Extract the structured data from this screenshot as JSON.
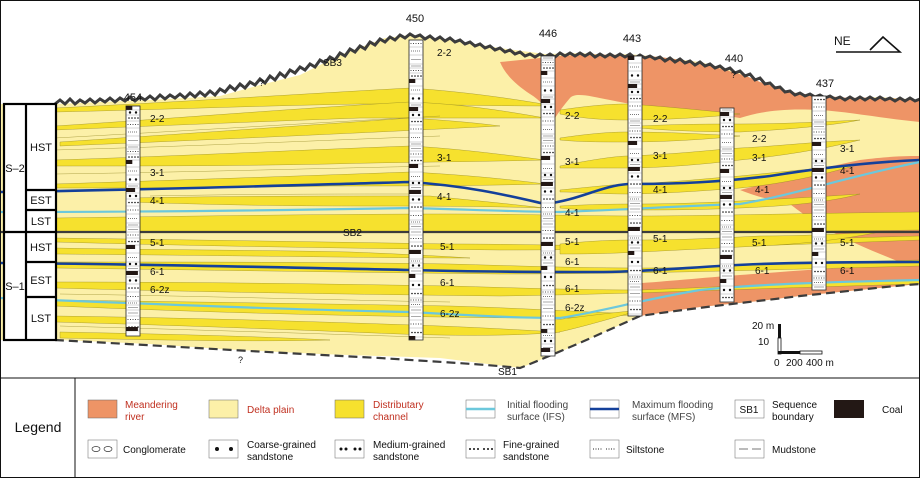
{
  "wells": [
    {
      "id": "454"
    },
    {
      "id": "450"
    },
    {
      "id": "446"
    },
    {
      "id": "443"
    },
    {
      "id": "440"
    },
    {
      "id": "437"
    }
  ],
  "sequences": {
    "upper": {
      "label": "S–2",
      "tracts": [
        "HST",
        "EST",
        "LST"
      ]
    },
    "lower": {
      "label": "S–1",
      "tracts": [
        "HST",
        "EST",
        "LST"
      ]
    }
  },
  "boundaries": {
    "sb1": "SB1",
    "sb2": "SB2",
    "sb3": "SB3",
    "uncertain": "?"
  },
  "north_arrow": "NE",
  "layer_labels": {
    "l22": "2-2",
    "l31": "3-1",
    "l41": "4-1",
    "l51": "5-1",
    "l61": "6-1",
    "l62z": "6-2z"
  },
  "scale": {
    "v1": "20 m",
    "v2": "10",
    "h0": "0",
    "h1": "200",
    "h2": "400 m"
  },
  "legend": {
    "title": "Legend",
    "items": [
      {
        "key": "meandering",
        "label": "Meandering\nriver"
      },
      {
        "key": "delta",
        "label": "Delta plain"
      },
      {
        "key": "channel",
        "label": "Distributary\nchannel"
      },
      {
        "key": "ifs",
        "label": "Initial flooding\nsurface (IFS)"
      },
      {
        "key": "mfs",
        "label": "Maximum flooding\nsurface (MFS)"
      },
      {
        "key": "sb",
        "label": "Sequence\nboundary"
      },
      {
        "key": "coal",
        "label": "Coal"
      },
      {
        "key": "conglomerate",
        "label": "Conglomerate"
      },
      {
        "key": "coarse",
        "label": "Coarse-grained\nsandstone"
      },
      {
        "key": "medium",
        "label": "Medium-grained\nsandstone"
      },
      {
        "key": "fine",
        "label": "Fine-grained\nsandstone"
      },
      {
        "key": "silt",
        "label": "Siltstone"
      },
      {
        "key": "mud",
        "label": "Mudstone"
      }
    ],
    "sb_box": "SB1"
  },
  "colors": {
    "meandering": "#EE9466",
    "delta": "#FCF0A8",
    "channel": "#F6E12E",
    "ifs": "#6CC8DC",
    "mfs": "#14409A",
    "coal": "#231815",
    "boundary": "#3C3C3C"
  }
}
